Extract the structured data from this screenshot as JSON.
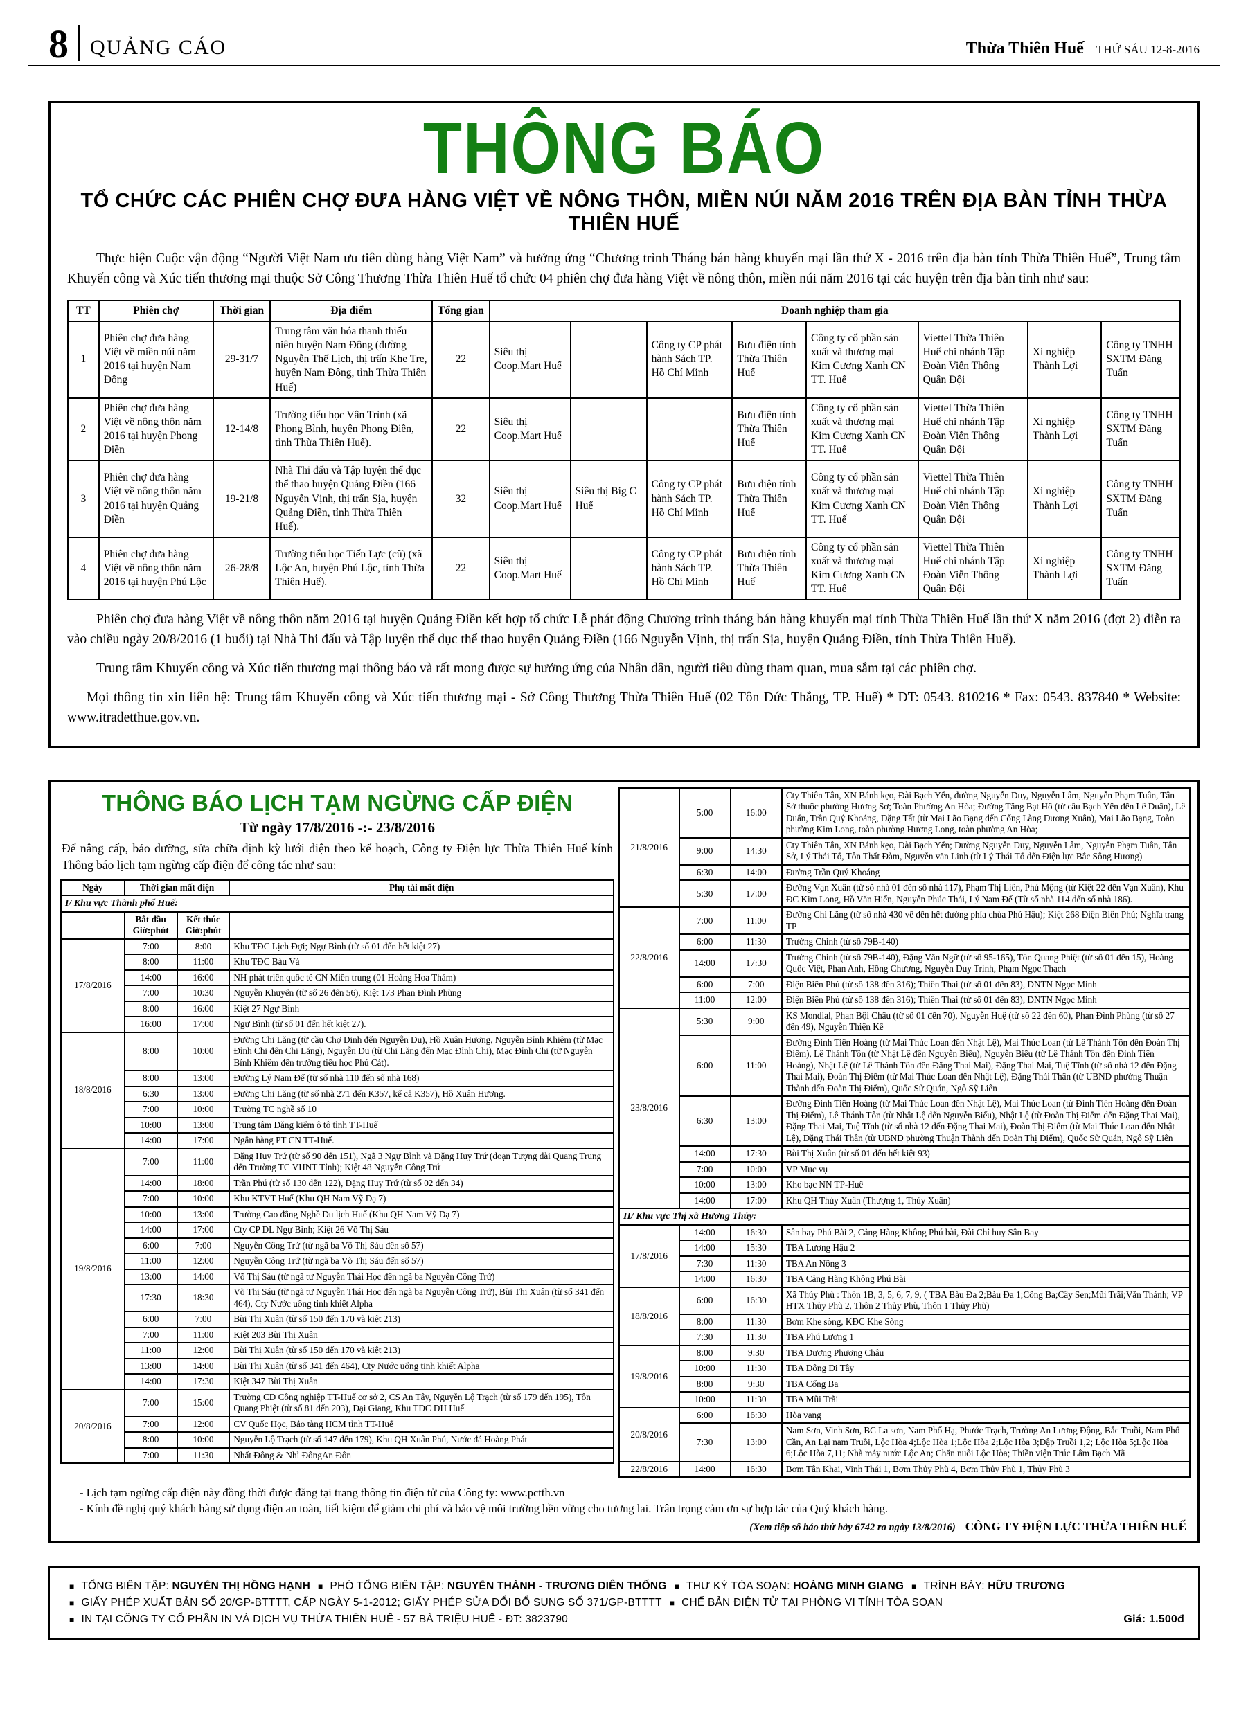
{
  "page_header": {
    "page_number": "8",
    "section": "QUẢNG CÁO",
    "masthead": "Thừa Thiên Huế",
    "date": "THỨ SÁU 12-8-2016"
  },
  "colors": {
    "title_green": "#148014"
  },
  "announcement1": {
    "title": "THÔNG BÁO",
    "subtitle": "TỔ CHỨC CÁC PHIÊN CHỢ ĐƯA HÀNG VIỆT VỀ NÔNG THÔN, MIỀN NÚI NĂM 2016 TRÊN ĐỊA BÀN TỈNH THỪA THIÊN HUẾ",
    "intro": "Thực hiện Cuộc vận động “Người Việt Nam ưu tiên dùng hàng Việt Nam” và hưởng ứng “Chương trình Tháng bán hàng khuyến mại lần thứ X - 2016 trên địa bàn tỉnh Thừa Thiên Huế”, Trung tâm Khuyến công và Xúc tiến thương mại thuộc Sở Công Thương Thừa Thiên Huế tổ chức 04 phiên chợ đưa hàng Việt về nông thôn, miền núi năm 2016 tại các huyện trên địa bàn tỉnh như sau:",
    "table": {
      "headers": [
        "TT",
        "Phiên chợ",
        "Thời gian",
        "Địa điểm",
        "Tổng gian",
        "Doanh nghiệp tham gia"
      ],
      "rows": [
        {
          "tt": "1",
          "market": "Phiên chợ đưa hàng Việt về miền núi năm 2016 tại huyện Nam Đông",
          "time": "29-31/7",
          "location": "Trung tâm văn hóa thanh thiếu niên huyện Nam Đông (đường Nguyễn Thế Lịch, thị trấn Khe Tre, huyện Nam Đông, tỉnh Thừa Thiên Huế)",
          "total": "22",
          "companies": [
            "Siêu thị Coop.Mart Huế",
            "",
            "Công ty CP phát hành Sách TP. Hồ Chí Minh",
            "Bưu điện tỉnh Thừa Thiên Huế",
            "Công ty cổ phần sản xuất và thương mại Kim Cương Xanh CN TT. Huế",
            "Viettel Thừa Thiên Huế chi nhánh Tập Đoàn Viễn Thông Quân Đội",
            "Xí nghiệp Thành Lợi",
            "Công ty TNHH SXTM Đăng Tuấn"
          ]
        },
        {
          "tt": "2",
          "market": "Phiên chợ đưa hàng Việt về nông thôn năm 2016 tại huyện Phong Điền",
          "time": "12-14/8",
          "location": "Trường tiểu học Vân Trình (xã Phong Bình, huyện Phong Điền, tỉnh Thừa Thiên Huế).",
          "total": "22",
          "companies": [
            "Siêu thị Coop.Mart Huế",
            "",
            "",
            "Bưu điện tỉnh Thừa Thiên Huế",
            "Công ty cổ phần sản xuất và thương mại Kim Cương Xanh CN TT. Huế",
            "Viettel Thừa Thiên Huế chi nhánh Tập Đoàn Viễn Thông Quân Đội",
            "Xí nghiệp Thành Lợi",
            "Công ty TNHH SXTM Đăng Tuấn"
          ]
        },
        {
          "tt": "3",
          "market": "Phiên chợ đưa hàng Việt về nông thôn năm 2016 tại huyện Quảng Điền",
          "time": "19-21/8",
          "location": "Nhà Thi đấu và Tập luyện thể dục thể thao huyện Quảng Điền (166 Nguyễn Vịnh, thị trấn Sịa, huyện Quảng Điền, tỉnh Thừa Thiên Huế).",
          "total": "32",
          "companies": [
            "Siêu thị Coop.Mart Huế",
            "Siêu thị Big C Huế",
            "Công ty CP phát hành Sách TP. Hồ Chí Minh",
            "Bưu điện tỉnh Thừa Thiên Huế",
            "Công ty cổ phần sản xuất và thương mại Kim Cương Xanh CN TT. Huế",
            "Viettel Thừa Thiên Huế chi nhánh Tập Đoàn Viễn Thông Quân Đội",
            "Xí nghiệp Thành Lợi",
            "Công ty TNHH SXTM Đăng Tuấn"
          ]
        },
        {
          "tt": "4",
          "market": "Phiên chợ đưa hàng Việt về nông thôn năm 2016 tại huyện Phú Lộc",
          "time": "26-28/8",
          "location": "Trường tiểu học Tiến Lực (cũ) (xã Lộc An, huyện Phú Lộc, tỉnh Thừa Thiên Huế).",
          "total": "22",
          "companies": [
            "Siêu thị Coop.Mart Huế",
            "",
            "Công ty CP phát hành Sách TP. Hồ Chí Minh",
            "Bưu điện tỉnh Thừa Thiên Huế",
            "Công ty cổ phần sản xuất và thương mại Kim Cương Xanh CN TT. Huế",
            "Viettel Thừa Thiên Huế chi nhánh Tập Đoàn Viễn Thông Quân Đội",
            "Xí nghiệp Thành Lợi",
            "Công ty TNHH SXTM Đăng Tuấn"
          ]
        }
      ]
    },
    "para1": "Phiên chợ đưa hàng Việt về nông thôn năm 2016 tại huyện Quảng Điền kết hợp tổ chức Lễ phát động Chương trình tháng bán hàng khuyến mại tỉnh Thừa Thiên Huế lần thứ X năm 2016 (đợt 2) diễn ra vào chiều ngày 20/8/2016 (1 buổi) tại Nhà Thi đấu và Tập luyện thể dục thể thao huyện Quảng Điền (166 Nguyễn Vịnh, thị trấn Sịa, huyện Quảng Điền, tỉnh Thừa Thiên Huế).",
    "para2": "Trung tâm Khuyến công và Xúc tiến thương mại thông báo và rất mong được sự hưởng ứng của Nhân dân, người tiêu dùng tham quan, mua sắm tại các phiên chợ.",
    "para3": "Mọi thông tin xin liên hệ: Trung tâm Khuyến công và Xúc tiến thương mại - Sở Công Thương Thừa Thiên Huế (02 Tôn Đức Thắng, TP. Huế) *  ĐT: 0543. 810216 *  Fax: 0543. 837840 *  Website: www.itradetthue.gov.vn."
  },
  "announcement2": {
    "title": "THÔNG BÁO LỊCH TẠM NGỪNG CẤP ĐIỆN",
    "date_range": "Từ ngày 17/8/2016 -:- 23/8/2016",
    "intro": "Để nâng cấp, bảo dưỡng, sửa chữa định kỳ lưới điện theo kế hoạch, Công ty Điện lực Thừa Thiên Huế kính Thông báo lịch tạm ngừng cấp điện để công tác như sau:",
    "headers": {
      "date": "Ngày",
      "time": "Thời gian mất điện",
      "load": "Phụ tải mất điện",
      "start": "Bắt đầu\nGiờ:phút",
      "end": "Kết thúc\nGiờ:phút"
    },
    "left_rows": [
      {
        "section": "I/ Khu vực Thành phố Huế:"
      },
      {
        "subheader": true
      },
      {
        "date": "17/8/2016",
        "span": 6,
        "start": "7:00",
        "end": "8:00",
        "load": "Khu TĐC Lịch Đợi; Ngự Bình (từ số 01 đến hết kiệt 27)"
      },
      {
        "start": "8:00",
        "end": "11:00",
        "load": "Khu TĐC Bàu Vá"
      },
      {
        "start": "14:00",
        "end": "16:00",
        "load": "NH phát triển quốc tế CN Miền trung (01 Hoàng Hoa Thám)"
      },
      {
        "start": "7:00",
        "end": "10:30",
        "load": "Nguyễn Khuyến (từ số 26 đến 56), Kiệt 173 Phan Đình Phùng"
      },
      {
        "start": "8:00",
        "end": "16:00",
        "load": "Kiệt 27 Ngự Bình"
      },
      {
        "start": "16:00",
        "end": "17:00",
        "load": "Ngự Bình (từ số 01 đến hết kiệt 27)."
      },
      {
        "date": "18/8/2016",
        "span": 6,
        "start": "8:00",
        "end": "10:00",
        "load": "Đường Chi Lăng (từ cầu Chợ Dinh đến Nguyễn Du), Hồ Xuân Hương, Nguyễn Bỉnh Khiêm (từ Mạc Đỉnh Chi đến Chi Lăng), Nguyễn Du (từ Chi Lăng đến Mạc Đỉnh Chi), Mạc Đỉnh Chi (từ Nguyễn Bỉnh Khiêm đến trường tiểu học Phú Cát)."
      },
      {
        "start": "8:00",
        "end": "13:00",
        "load": "Đường Lý Nam Đế (từ số nhà 110 đến số nhà 168)"
      },
      {
        "start": "6:30",
        "end": "13:00",
        "load": "Đường Chi Lăng (từ số nhà 271 đến K357, kể cả K357), Hồ Xuân Hương."
      },
      {
        "start": "7:00",
        "end": "10:00",
        "load": "Trường TC nghề số 10"
      },
      {
        "start": "10:00",
        "end": "13:00",
        "load": "Trung tâm Đăng kiểm ô tô tỉnh TT-Huế"
      },
      {
        "start": "14:00",
        "end": "17:00",
        "load": "Ngân hàng PT CN TT-Huế."
      },
      {
        "date": "19/8/2016",
        "span": 14,
        "start": "7:00",
        "end": "11:00",
        "load": "Đặng Huy Trứ (từ số 90 đến 151), Ngã 3 Ngự Bình và Đặng Huy Trứ (đoạn Tượng đài Quang Trung đến Trường TC VHNT Tỉnh); Kiệt 48 Nguyễn Công Trứ"
      },
      {
        "start": "14:00",
        "end": "18:00",
        "load": "Trần Phú (từ số 130 đến 122), Đặng Huy Trứ (từ số 02 đến 34)"
      },
      {
        "start": "7:00",
        "end": "10:00",
        "load": "Khu KTVT Huế (Khu QH Nam Vỹ Dạ 7)"
      },
      {
        "start": "10:00",
        "end": "13:00",
        "load": "Trường Cao đẳng Nghề Du lịch Huế (Khu QH Nam Vỹ Dạ 7)"
      },
      {
        "start": "14:00",
        "end": "17:00",
        "load": "Cty CP DL Ngự Bình; Kiệt 26 Võ Thị Sáu"
      },
      {
        "start": "6:00",
        "end": "7:00",
        "load": "Nguyễn Công Trứ (từ ngã ba Võ Thị Sáu đến số 57)"
      },
      {
        "start": "11:00",
        "end": "12:00",
        "load": "Nguyễn Công Trứ (từ ngã ba Võ Thị Sáu đến số 57)"
      },
      {
        "start": "13:00",
        "end": "14:00",
        "load": "Võ Thị Sáu (từ ngã tư Nguyễn Thái Học đến ngã ba Nguyễn Công Trứ)"
      },
      {
        "start": "17:30",
        "end": "18:30",
        "load": "Võ Thị Sáu (từ ngã tư Nguyễn Thái Học đến ngã ba Nguyễn Công Trứ), Bùi Thị Xuân (từ số 341 đến 464), Cty Nước uống tinh khiết Alpha"
      },
      {
        "start": "6:00",
        "end": "7:00",
        "load": "Bùi Thị Xuân (từ số 150 đến 170 và kiệt 213)"
      },
      {
        "start": "7:00",
        "end": "11:00",
        "load": "Kiệt 203 Bùi Thị Xuân"
      },
      {
        "start": "11:00",
        "end": "12:00",
        "load": "Bùi Thị Xuân (từ số 150 đến 170 và kiệt 213)"
      },
      {
        "start": "13:00",
        "end": "14:00",
        "load": "Bùi Thị Xuân (từ số 341 đến 464), Cty Nước uống tinh khiết Alpha"
      },
      {
        "start": "14:00",
        "end": "17:30",
        "load": "Kiệt 347 Bùi Thị Xuân"
      },
      {
        "date": "20/8/2016",
        "span": 4,
        "start": "7:00",
        "end": "15:00",
        "load": "Trường CĐ Công nghiệp TT-Huế cơ sở 2, CS An Tây, Nguyễn Lộ Trạch (từ số 179 đến 195), Tôn Quang Phiệt (từ số 81 đến 203), Đại Giang, Khu TĐC ĐH Huế"
      },
      {
        "start": "7:00",
        "end": "12:00",
        "load": "CV Quốc Học, Bảo tàng HCM tỉnh TT-Huế"
      },
      {
        "start": "8:00",
        "end": "10:00",
        "load": "Nguyễn Lộ Trạch (từ số 147 đến 179), Khu QH Xuân Phú, Nước đá Hoàng Phát"
      },
      {
        "start": "7:00",
        "end": "11:30",
        "load": "Nhất Đông & Nhì ĐôngAn Đôn"
      }
    ],
    "right_rows": [
      {
        "date": "21/8/2016",
        "span": 4,
        "start": "5:00",
        "end": "16:00",
        "load": "Cty Thiên Tân, XN Bánh kẹo, Đài Bạch Yến, đường Nguyễn Duy, Nguyễn Lâm, Nguyễn Phạm Tuân, Tân Sở thuộc phường Hương Sơ; Toàn Phường An Hòa; Đường Tăng Bạt Hổ (từ cầu Bạch Yến đến Lê Duẩn), Lê Duẩn, Trần Quý Khoáng, Đặng Tất (từ Mai Lão Bạng đến Cống Làng Dương Xuân), Mai Lão Bạng, Toàn phường Kim Long, toàn phường Hương Long, toàn phường An Hòa;"
      },
      {
        "start": "9:00",
        "end": "14:30",
        "load": "Cty Thiên Tân, XN Bánh kẹo, Đài Bạch Yến; Đường Nguyễn Duy, Nguyễn Lâm, Nguyễn Phạm Tuân, Tân Sở, Lý Thái Tổ, Tôn Thất Đàm, Nguyễn văn Linh (từ Lý Thái Tổ đến Điện lực Bắc Sông Hương)"
      },
      {
        "start": "6:30",
        "end": "14:00",
        "load": "Đường Trần Quý Khoáng"
      },
      {
        "start": "5:30",
        "end": "17:00",
        "load": "Đường Vạn Xuân (từ số nhà 01 đến số nhà 117), Phạm Thị Liên, Phú Mộng (từ Kiệt 22 đến Vạn Xuân), Khu ĐC Kim Long, Hồ Văn Hiển, Nguyễn Phúc Thái, Lý Nam Đế (Từ số nhà 114 đến số nhà 186)."
      },
      {
        "date": "22/8/2016",
        "span": 5,
        "start": "7:00",
        "end": "11:00",
        "load": "Đường Chi Lăng (từ số nhà 430 về đến hết đường phía chùa Phú Hậu); Kiệt 268 Điện Biên Phủ; Nghĩa trang TP"
      },
      {
        "start": "6:00",
        "end": "11:30",
        "load": "Trường Chinh (từ số 79B-140)"
      },
      {
        "start": "14:00",
        "end": "17:30",
        "load": "Trường Chinh (từ số 79B-140), Đặng Văn Ngữ (từ số 95-165), Tôn Quang Phiệt (từ số 01 đến 15), Hoàng Quốc Việt, Phan Anh, Hồng Chương, Nguyễn Duy Trinh, Phạm Ngọc Thạch"
      },
      {
        "start": "6:00",
        "end": "7:00",
        "load": "Điện Biên Phủ (từ số 138 đến 316); Thiên Thai (từ số 01 đến 83), DNTN Ngọc Minh"
      },
      {
        "start": "11:00",
        "end": "12:00",
        "load": "Điện Biên Phủ (từ số 138 đến 316); Thiên Thai (từ số 01 đến 83), DNTN Ngọc Minh"
      },
      {
        "date": "23/8/2016",
        "span": 7,
        "start": "5:30",
        "end": "9:00",
        "load": "KS Mondial, Phan Bội Châu (từ số 01 đến 70), Nguyễn Huệ (từ số 22 đến 60), Phan Đình Phùng (từ số 27 đến 49), Nguyễn Thiện Kế"
      },
      {
        "start": "6:00",
        "end": "11:00",
        "load": "Đường Đinh Tiên Hoàng (từ Mai Thúc Loan đến Nhật Lệ), Mai Thúc Loan (từ Lê Thánh Tôn đến Đoàn Thị Điểm), Lê Thánh Tôn (từ Nhật Lệ đến Nguyễn Biểu), Nguyễn Biểu (từ Lê Thánh Tôn đến Đinh Tiên Hoàng), Nhật Lệ (từ Lê Thánh Tôn đến Đặng Thai Mai), Đặng Thai Mai, Tuệ Tĩnh (từ số nhà 12 đến Đặng Thai Mai), Đoàn Thị Điểm (từ Mai Thúc Loan đến Nhật Lệ), Đặng Thái Thân (từ UBND phường Thuận Thành đến Đoàn Thị Điểm), Quốc Sử Quán, Ngô Sỹ Liên"
      },
      {
        "start": "6:30",
        "end": "13:00",
        "load": "Đường Đinh Tiên Hoàng (từ Mai Thúc Loan đến Nhật Lệ), Mai Thúc Loan (từ Đinh Tiên Hoàng đến Đoàn Thị Điểm), Lê Thánh Tôn (từ Nhật Lệ đến Nguyễn Biểu), Nhật Lệ (từ Đoàn Thị Điểm đến Đặng Thai Mai), Đặng Thai Mai, Tuệ Tĩnh (từ số nhà 12 đến Đặng Thai Mai), Đoàn Thị Điểm (từ Mai Thúc Loan đến Nhật Lệ), Đặng Thái Thân (từ UBND phường Thuận Thành đến Đoàn Thị Điểm), Quốc Sử Quán, Ngô Sỹ Liên"
      },
      {
        "start": "14:00",
        "end": "17:30",
        "load": "Bùi Thị Xuân (từ số 01 đến hết kiệt 93)"
      },
      {
        "start": "7:00",
        "end": "10:00",
        "load": "VP Mục vụ"
      },
      {
        "start": "10:00",
        "end": "13:00",
        "load": "Kho bạc NN TP-Huế"
      },
      {
        "start": "14:00",
        "end": "17:00",
        "load": "Khu QH Thủy Xuân (Thượng 1, Thủy Xuân)"
      },
      {
        "section": "II/ Khu vực Thị xã Hương Thủy:"
      },
      {
        "date": "17/8/2016",
        "span": 4,
        "start": "14:00",
        "end": "16:30",
        "load": "Sân bay Phú Bài 2, Cảng Hàng Không Phú bài, Đài Chỉ huy Sân Bay"
      },
      {
        "start": "14:00",
        "end": "15:30",
        "load": "TBA Lương Hậu 2"
      },
      {
        "start": "7:30",
        "end": "11:30",
        "load": "TBA An Nông 3"
      },
      {
        "start": "14:00",
        "end": "16:30",
        "load": "TBA Cảng Hàng Không Phú Bài"
      },
      {
        "date": "18/8/2016",
        "span": 3,
        "start": "6:00",
        "end": "16:30",
        "load": "Xã Thủy Phù : Thôn 1B, 3, 5, 6, 7, 9, ( TBA Bàu Đa 2;Bàu Đa 1;Cống Ba;Cây Sen;Mũi Trãi;Văn Thánh; VP HTX Thủy Phù 2, Thôn 2 Thủy Phù, Thôn 1 Thủy Phù)"
      },
      {
        "start": "8:00",
        "end": "11:30",
        "load": "Bơm Khe sòng, KĐC Khe Sòng"
      },
      {
        "start": "7:30",
        "end": "11:30",
        "load": "TBA Phú Lương 1"
      },
      {
        "date": "19/8/2016",
        "span": 4,
        "start": "8:00",
        "end": "9:30",
        "load": "TBA Dương Phương Châu"
      },
      {
        "start": "10:00",
        "end": "11:30",
        "load": "TBA Đông Di Tây"
      },
      {
        "start": "8:00",
        "end": "9:30",
        "load": "TBA Cống Ba"
      },
      {
        "start": "10:00",
        "end": "11:30",
        "load": "TBA Mũi Trãi"
      },
      {
        "date": "20/8/2016",
        "span": 2,
        "start": "6:00",
        "end": "16:30",
        "load": "Hòa vang"
      },
      {
        "start": "7:30",
        "end": "13:00",
        "load": "Nam Sơn, Vinh Sơn, BC La sơn, Nam Phổ Hạ, Phước Trạch, Trường An Lương Động, Bắc Truồi, Nam Phổ Cần, An Lại nam Truồi, Lộc Hòa 4;Lộc Hòa 1;Lộc Hòa 2;Lộc Hòa 3;Đập Truồi 1,2; Lộc Hòa 5;Lộc Hòa 6;Lộc Hòa 7,11; Nhà máy nước Lộc An; Chăn nuôi Lộc Hòa; Thiền viện Trúc Lâm Bạch Mã"
      },
      {
        "date": "22/8/2016",
        "span": 1,
        "start": "14:00",
        "end": "16:30",
        "load": "Bơm Tân Khai, Vinh Thái 1, Bơm Thủy Phù 4, Bơm Thủy Phù 1, Thủy Phù 3"
      }
    ],
    "notes": [
      "- Lịch tạm ngừng cấp điện này đồng thời được đăng tại trang thông tin điện tử của Công ty: www.pctth.vn",
      "- Kính đề nghị quý khách hàng sử dụng điện an toàn, tiết kiệm để giảm chi phí và bảo vệ môi trường bền vững cho tương lai. Trân trọng cảm ơn sự hợp tác của Quý khách hàng."
    ],
    "continuation": "(Xem tiếp số báo thứ bảy 6742 ra ngày 13/8/2016)",
    "signature": "CÔNG TY ĐIỆN LỰC THỪA THIÊN HUẾ"
  },
  "footer": {
    "lines": [
      [
        {
          "pre": "TỔNG BIÊN TẬP: ",
          "strong": "NGUYỄN THỊ HỒNG HẠNH"
        },
        {
          "pre": "PHÓ TỔNG BIÊN TẬP: ",
          "strong": "NGUYỄN THÀNH  -  TRƯƠNG DIÊN THỐNG"
        },
        {
          "pre": "THƯ KÝ TÒA SOẠN: ",
          "strong": "HOÀNG MINH GIANG"
        },
        {
          "pre": "TRÌNH BÀY: ",
          "strong": "HỮU TRƯƠNG"
        }
      ],
      [
        {
          "pre": "GIẤY PHÉP XUẤT BẢN SỐ 20/GP-BTTTT, CẤP NGÀY 5-1-2012; GIẤY PHÉP SỬA ĐỔI BỔ SUNG SỐ 371/GP-BTTTT",
          "strong": ""
        },
        {
          "pre": "CHẾ BẢN ĐIỆN TỬ TẠI PHÒNG VI TÍNH TÒA SOẠN",
          "strong": ""
        }
      ],
      [
        {
          "pre": "IN TẠI CÔNG TY CỔ PHẦN IN VÀ DỊCH VỤ THỪA THIÊN HUẾ - 57 BÀ TRIỆU HUẾ - ĐT: 3823790",
          "strong": ""
        }
      ]
    ],
    "price": "Giá: 1.500đ"
  }
}
